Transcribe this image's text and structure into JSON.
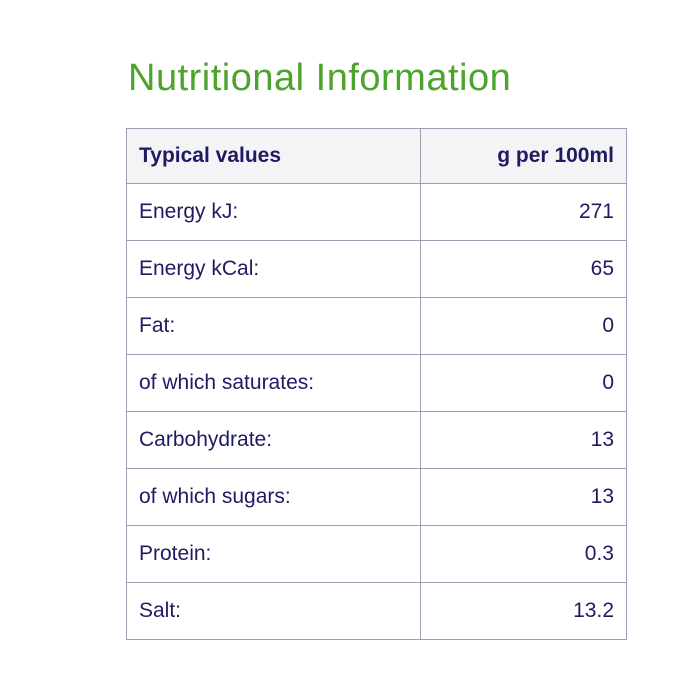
{
  "title": "Nutritional Information",
  "colors": {
    "title_green": "#4da32e",
    "text_navy": "#1e1b63",
    "table_border": "#a0a0b5",
    "header_background": "#f4f4f6",
    "page_background": "#ffffff"
  },
  "table": {
    "header": {
      "label": "Typical values",
      "amount": "g per 100ml"
    },
    "rows": [
      {
        "label": "Energy kJ:",
        "value": "271"
      },
      {
        "label": "Energy kCal:",
        "value": "65"
      },
      {
        "label": "Fat:",
        "value": "0"
      },
      {
        "label": "of which saturates:",
        "value": "0"
      },
      {
        "label": "Carbohydrate:",
        "value": "13"
      },
      {
        "label": "of which sugars:",
        "value": "13"
      },
      {
        "label": "Protein:",
        "value": "0.3"
      },
      {
        "label": "Salt:",
        "value": "13.2"
      }
    ]
  },
  "chart_data": {
    "type": "table",
    "title": "Nutritional Information",
    "columns": [
      "Typical values",
      "g per 100ml"
    ],
    "rows": [
      [
        "Energy kJ:",
        271
      ],
      [
        "Energy kCal:",
        65
      ],
      [
        "Fat:",
        0
      ],
      [
        "of which saturates:",
        0
      ],
      [
        "Carbohydrate:",
        13
      ],
      [
        "of which sugars:",
        13
      ],
      [
        "Protein:",
        0.3
      ],
      [
        "Salt:",
        13.2
      ]
    ]
  }
}
